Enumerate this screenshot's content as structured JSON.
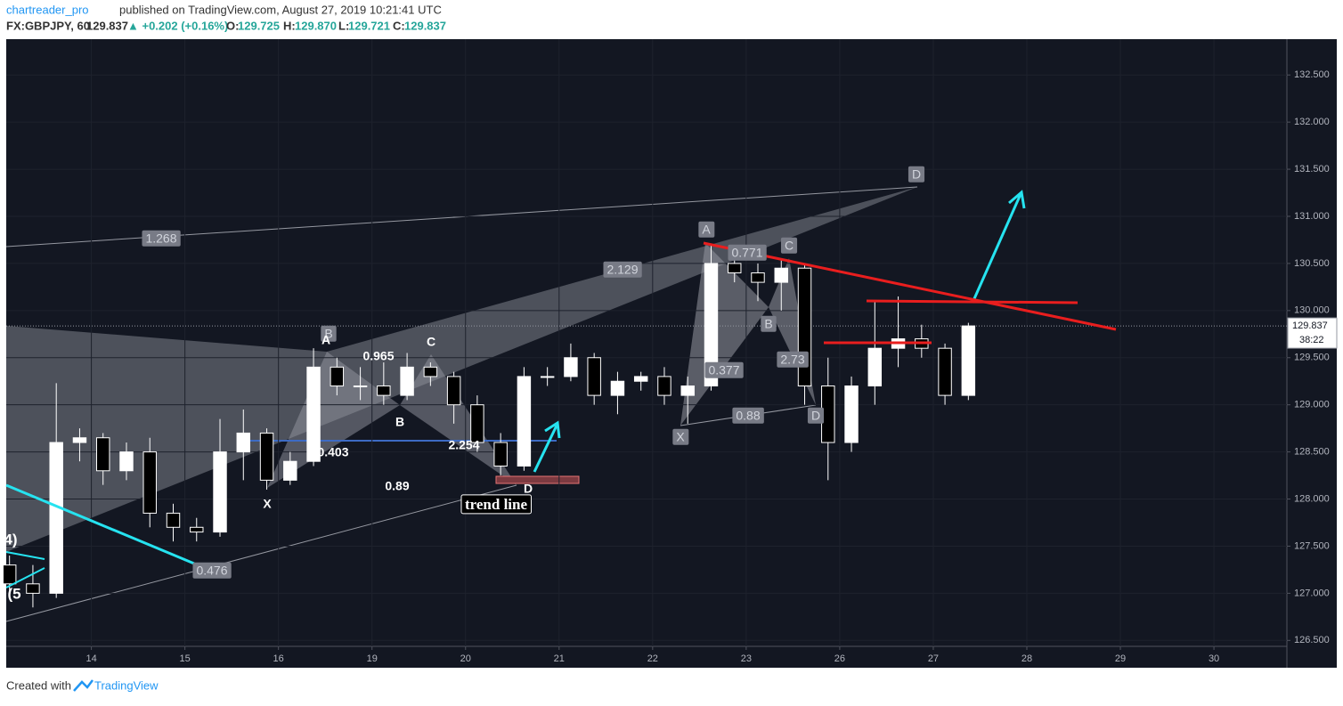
{
  "header": {
    "author": "chartreader_pro",
    "published": "published on TradingView.com, August 27, 2019 10:21:41 UTC",
    "symbol": "FX:GBPJPY, 60",
    "price": "129.837",
    "change": "▲ +0.202 (+0.16%)",
    "o_label": "O:",
    "o": "129.725",
    "h_label": "H:",
    "h": "129.870",
    "l_label": "L:",
    "l": "129.721",
    "c_label": "C:",
    "c": "129.837"
  },
  "footer": {
    "created": "Created with",
    "brand": "TradingView"
  },
  "chart_data": {
    "type": "candlestick",
    "x": [
      0.125,
      0.375,
      0.625,
      0.875,
      1.125,
      1.375,
      1.625,
      1.875,
      2.125,
      2.375,
      2.625,
      2.875,
      3.125,
      3.375,
      3.625,
      3.875,
      4.125,
      4.375,
      4.625,
      4.875,
      5.125,
      5.375,
      5.625,
      5.875,
      6.125,
      6.375,
      6.625,
      6.875,
      7.125,
      7.375,
      7.625,
      7.875,
      8.125,
      8.375,
      8.625,
      8.875,
      9.125,
      9.375,
      9.625,
      9.875,
      10.125,
      10.375
    ],
    "open": [
      127.3,
      127.1,
      127.0,
      128.6,
      128.65,
      128.3,
      128.5,
      127.85,
      127.7,
      127.65,
      128.5,
      128.7,
      128.2,
      128.4,
      129.4,
      129.2,
      129.2,
      129.1,
      129.4,
      129.3,
      129.0,
      128.6,
      128.35,
      129.3,
      129.3,
      129.5,
      129.1,
      129.25,
      129.3,
      129.1,
      129.2,
      130.5,
      130.4,
      130.3,
      130.45,
      129.2,
      128.6,
      129.2,
      129.6,
      129.7,
      129.6,
      129.1
    ],
    "high": [
      127.4,
      127.3,
      129.23,
      128.75,
      128.7,
      128.6,
      128.65,
      127.95,
      127.8,
      128.85,
      128.95,
      128.75,
      128.5,
      129.6,
      129.5,
      129.4,
      129.45,
      129.55,
      129.45,
      129.35,
      129.1,
      128.7,
      129.4,
      129.4,
      129.65,
      129.55,
      129.35,
      129.35,
      129.4,
      129.3,
      130.7,
      130.6,
      130.5,
      130.55,
      130.5,
      129.5,
      129.3,
      130.1,
      130.15,
      129.85,
      129.65,
      129.87
    ],
    "low": [
      127.0,
      126.85,
      126.95,
      128.4,
      128.15,
      128.2,
      127.7,
      127.55,
      127.55,
      127.6,
      128.2,
      128.1,
      128.15,
      128.35,
      129.1,
      129.05,
      129.0,
      129.05,
      129.2,
      128.8,
      128.5,
      128.25,
      128.3,
      129.2,
      129.25,
      129.0,
      128.9,
      129.15,
      129.0,
      128.8,
      129.15,
      130.3,
      130.1,
      130.0,
      129.0,
      128.2,
      128.5,
      129.0,
      129.4,
      129.5,
      129.0,
      129.05
    ],
    "close": [
      127.1,
      127.0,
      128.6,
      128.65,
      128.3,
      128.5,
      127.85,
      127.7,
      127.65,
      128.5,
      128.7,
      128.2,
      128.4,
      129.4,
      129.2,
      129.2,
      129.1,
      129.4,
      129.3,
      129.0,
      128.6,
      128.35,
      129.3,
      129.3,
      129.5,
      129.1,
      129.25,
      129.3,
      129.1,
      129.2,
      130.5,
      130.4,
      130.3,
      130.45,
      129.2,
      128.6,
      129.2,
      129.6,
      129.7,
      129.6,
      129.1,
      129.837
    ],
    "countdown": "38:22",
    "xlim": [
      0.09,
      13.78
    ],
    "xticks": [
      {
        "value": 1,
        "label": "14"
      },
      {
        "value": 2,
        "label": "15"
      },
      {
        "value": 3,
        "label": "16"
      },
      {
        "value": 4,
        "label": "19"
      },
      {
        "value": 5,
        "label": "20"
      },
      {
        "value": 6,
        "label": "21"
      },
      {
        "value": 7,
        "label": "22"
      },
      {
        "value": 8,
        "label": "23"
      },
      {
        "value": 9,
        "label": "26"
      },
      {
        "value": 10,
        "label": "27"
      },
      {
        "value": 11,
        "label": "28"
      },
      {
        "value": 12,
        "label": "29"
      },
      {
        "value": 13,
        "label": "30"
      }
    ],
    "ylim": [
      126.21,
      132.88
    ],
    "yticks": [
      {
        "value": 126.5,
        "label": "126.500"
      },
      {
        "value": 127,
        "label": "127.000"
      },
      {
        "value": 127.5,
        "label": "127.500"
      },
      {
        "value": 128,
        "label": "128.000"
      },
      {
        "value": 128.5,
        "label": "128.500"
      },
      {
        "value": 129,
        "label": "129.000"
      },
      {
        "value": 129.5,
        "label": "129.500"
      },
      {
        "value": 130,
        "label": "130.000"
      },
      {
        "value": 130.5,
        "label": "130.500"
      },
      {
        "value": 131,
        "label": "131.000"
      },
      {
        "value": 131.5,
        "label": "131.500"
      },
      {
        "value": 132,
        "label": "132.000"
      },
      {
        "value": 132.5,
        "label": "132.500"
      }
    ],
    "up_color": "#ffffff",
    "down_color": "#000000",
    "annotations": [
      "1.268",
      "2.129",
      "D",
      "A",
      "0.771",
      "C",
      "B",
      "2.73",
      "0.377",
      "D",
      "0.88",
      "X",
      "B",
      "0.476",
      "A",
      "0.965",
      "C",
      "B",
      "0.403",
      "2.254",
      "X",
      "0.89",
      "D",
      "trend line",
      "4)",
      "(5"
    ]
  }
}
